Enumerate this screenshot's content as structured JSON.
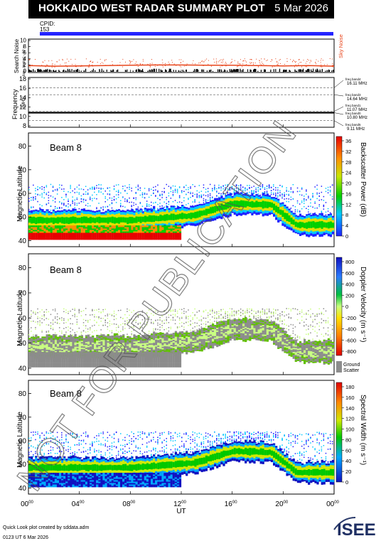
{
  "header": {
    "title": "HOKKAIDO WEST RADAR SUMMARY PLOT",
    "date": "5 Mar 2026"
  },
  "cpid": {
    "label": "CPID:",
    "value": "153"
  },
  "watermark": "NOT FOR PUBLICATION",
  "footer": {
    "credit": "Quick Look plot created by sddata.adm",
    "time": "0123 UT  6 Mar 2026"
  },
  "logo": {
    "text": "ISEE"
  },
  "colors": {
    "blue_bar": "#2424ff",
    "sky_noise": "#e8461c",
    "ground_scatter": "#8c8c8c"
  },
  "chart_data": [
    {
      "type": "line",
      "panel": "noise",
      "ylabel": "Search Noise",
      "ylabel_units": "log₁₀ (noise) - 10⁻¹⁸",
      "yticks": [
        "0",
        "2",
        "4",
        "6",
        "8",
        "10"
      ],
      "ylim": [
        0,
        10
      ],
      "legend": "Sky Noise",
      "x": [
        0,
        2,
        4,
        6,
        8,
        10,
        12,
        14,
        16,
        18,
        20,
        22,
        24
      ],
      "values": [
        1.8,
        1.6,
        1.7,
        1.8,
        1.9,
        2.0,
        2.0,
        1.9,
        1.9,
        1.8,
        1.7,
        1.8,
        1.6
      ]
    },
    {
      "type": "line",
      "panel": "frequency",
      "ylabel": "Frequency",
      "ylabel_units": "(MHz)",
      "yticks": [
        "8",
        "10",
        "12",
        "14",
        "16",
        "18"
      ],
      "ylim": [
        8,
        18
      ],
      "bands": [
        {
          "name": "freq band4",
          "value": "16.11 MHz",
          "mhz": 16.11
        },
        {
          "name": "freq band3",
          "value": "14.64 MHz",
          "mhz": 14.64
        },
        {
          "name": "freq band1",
          "value": "11.07 MHz",
          "mhz": 11.07
        },
        {
          "name": "freq band0",
          "value": "10.80 MHz",
          "mhz": 10.8
        },
        {
          "name": "freq band5",
          "value": "9.11 MHz",
          "mhz": 9.11
        }
      ],
      "operating_mhz": 10.8
    },
    {
      "type": "heatmap",
      "panel": "power",
      "beam": "Beam  8",
      "ylabel": "Magnetic Latitude",
      "yticks": [
        "40",
        "50",
        "60",
        "70",
        "80"
      ],
      "ylim": [
        38,
        85
      ],
      "colorbar_label": "Backscatter Power (dB)",
      "colorbar_ticks": [
        "0",
        "4",
        "8",
        "12",
        "16",
        "20",
        "24",
        "28",
        "32",
        "36"
      ]
    },
    {
      "type": "heatmap",
      "panel": "velocity",
      "beam": "Beam  8",
      "ylabel": "Magnetic Latitude",
      "yticks": [
        "40",
        "50",
        "60",
        "70",
        "80"
      ],
      "ylim": [
        38,
        85
      ],
      "colorbar_label": "Doppler Velocity (m s⁻¹)",
      "colorbar_ticks": [
        "800",
        "600",
        "400",
        "200",
        "0",
        "-200",
        "-400",
        "-600",
        "-800"
      ],
      "ground_label": "Ground",
      "scatter_label": "Scatter"
    },
    {
      "type": "heatmap",
      "panel": "width",
      "beam": "Beam  8",
      "ylabel": "Magnetic Latitude",
      "yticks": [
        "40",
        "50",
        "60",
        "70",
        "80"
      ],
      "ylim": [
        38,
        85
      ],
      "colorbar_label": "Spectral Width (m s⁻¹)",
      "colorbar_ticks": [
        "0",
        "20",
        "40",
        "60",
        "80",
        "100",
        "120",
        "140",
        "160",
        "180"
      ],
      "xlabel": "UT",
      "xticks": [
        "00",
        "04",
        "08",
        "12",
        "16",
        "20",
        "00"
      ],
      "xtick_sup": "00",
      "xlim": [
        0,
        24
      ]
    }
  ]
}
